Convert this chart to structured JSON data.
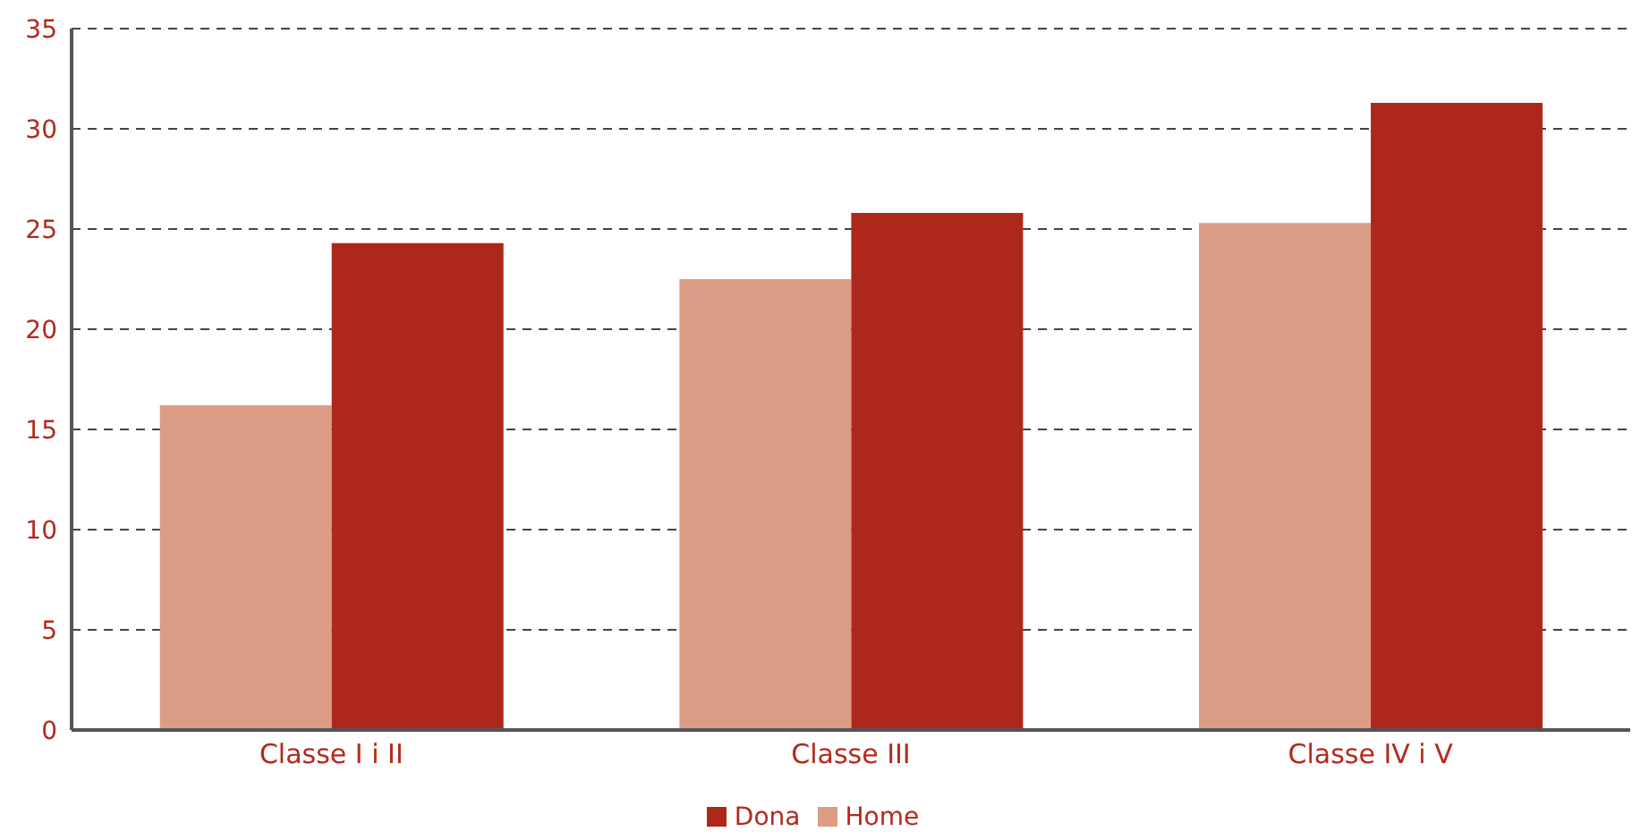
{
  "chart_data": {
    "type": "bar",
    "categories": [
      "Classe I i II",
      "Classe III",
      "Classe IV i V"
    ],
    "series": [
      {
        "name": "Home",
        "color": "#dd9c86",
        "values": [
          16.2,
          22.5,
          25.3
        ]
      },
      {
        "name": "Dona",
        "color": "#ae271b",
        "values": [
          24.3,
          25.8,
          31.3
        ]
      }
    ],
    "ylim": [
      0,
      35
    ],
    "yticks": [
      0,
      5,
      10,
      15,
      20,
      25,
      30,
      35
    ],
    "grid": "y",
    "legend": "bottom"
  }
}
